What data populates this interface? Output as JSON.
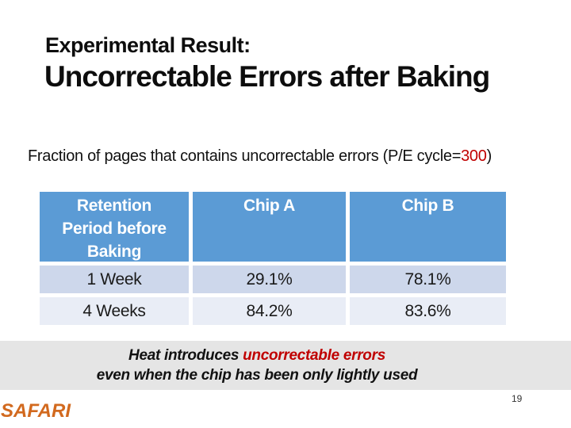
{
  "slide": {
    "title_line1": "Experimental Result:",
    "title_line2": "Uncorrectable Errors after Baking",
    "caption": {
      "prefix": "Fraction of pages that contains uncorrectable errors (P/E cycle=",
      "highlight": "300",
      "suffix": ")"
    },
    "table": {
      "headers": [
        "Retention Period before Baking",
        "Chip A",
        "Chip B"
      ],
      "rows": [
        [
          "1 Week",
          "29.1%",
          "78.1%"
        ],
        [
          "4 Weeks",
          "84.2%",
          "83.6%"
        ]
      ]
    },
    "banner": {
      "line1_prefix": "Heat introduces ",
      "line1_highlight": "uncorrectable errors",
      "line2": "even when the chip has been only lightly used"
    },
    "footer": {
      "logo": "SAFARI",
      "page_number": "19"
    },
    "colors": {
      "header_blue": "#5b9bd5",
      "row_odd_blue": "#cdd7eb",
      "row_even_blue": "#e9edf6",
      "banner_gray": "#e5e5e5",
      "accent_red": "#c00000",
      "logo_orange": "#d2691e",
      "title_black": "#0d0d0d"
    }
  }
}
